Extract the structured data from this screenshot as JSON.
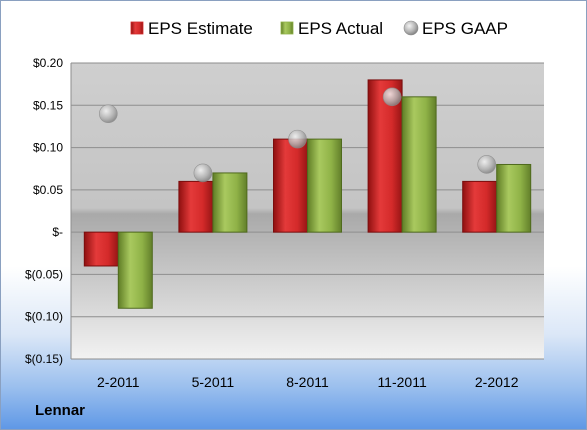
{
  "company": "Lennar",
  "chart_data": {
    "type": "bar",
    "categories": [
      "2-2011",
      "5-2011",
      "8-2011",
      "11-2011",
      "2-2012"
    ],
    "series": [
      {
        "name": "EPS Estimate",
        "type": "bar",
        "values": [
          -0.04,
          0.06,
          0.11,
          0.18,
          0.06
        ]
      },
      {
        "name": "EPS Actual",
        "type": "bar",
        "values": [
          -0.09,
          0.07,
          0.11,
          0.16,
          0.08
        ]
      },
      {
        "name": "EPS GAAP",
        "type": "scatter",
        "values": [
          0.14,
          0.07,
          0.11,
          0.16,
          0.08
        ]
      }
    ],
    "ylim": [
      -0.15,
      0.2
    ],
    "yticks": [
      {
        "value": 0.2,
        "label": "$0.20"
      },
      {
        "value": 0.15,
        "label": "$0.15"
      },
      {
        "value": 0.1,
        "label": "$0.10"
      },
      {
        "value": 0.05,
        "label": "$0.05"
      },
      {
        "value": 0,
        "label": "$-"
      },
      {
        "value": -0.05,
        "label": "$(0.05)"
      },
      {
        "value": -0.1,
        "label": "$(0.10)"
      },
      {
        "value": -0.15,
        "label": "$(0.15)"
      }
    ],
    "legend_position": "top",
    "grid": true,
    "colors": {
      "EPS Estimate": "#d42a2a",
      "EPS Actual": "#8fb247",
      "EPS GAAP": "#b8b8b8"
    }
  }
}
